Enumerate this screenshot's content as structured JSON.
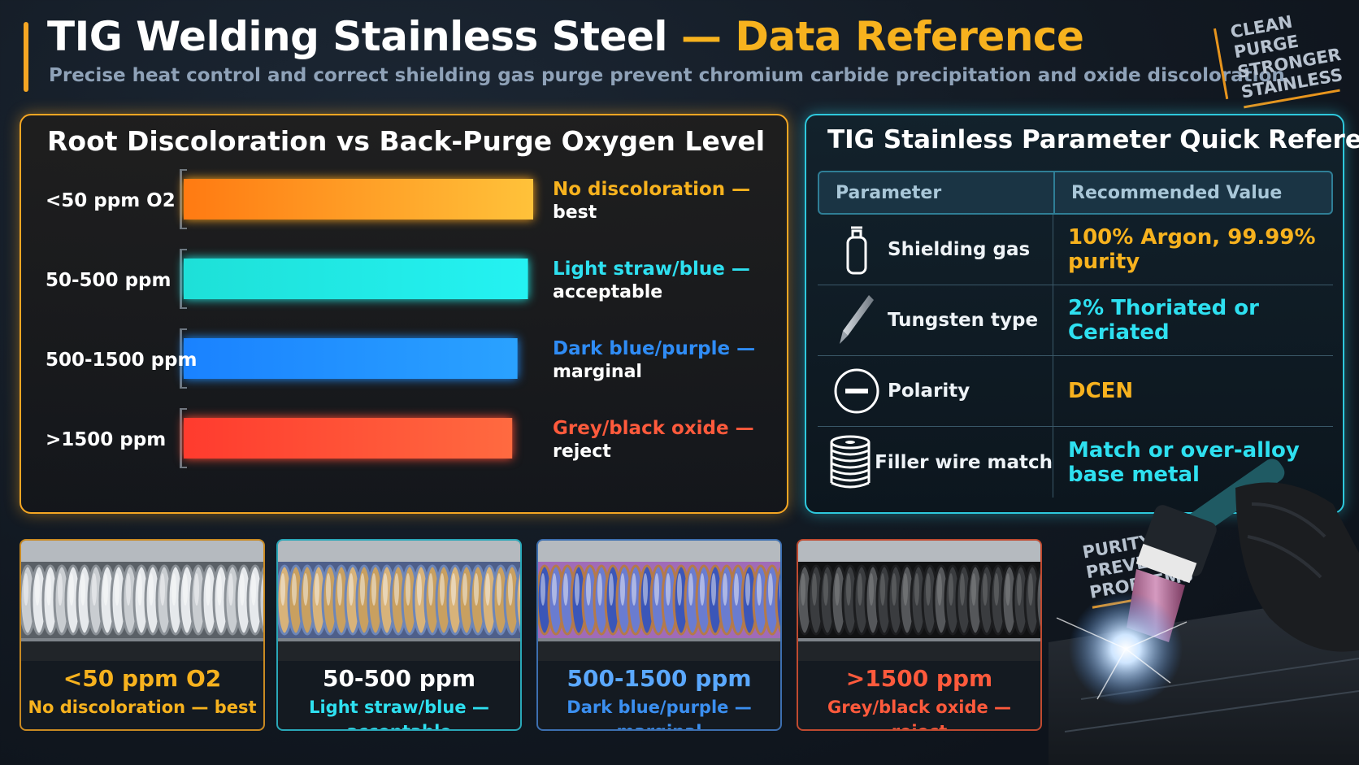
{
  "header": {
    "title_main": "TIG Welding Stainless Steel",
    "title_accent": "— Data Reference",
    "subtitle": "Precise heat control and correct shielding gas purge prevent chromium carbide precipitation and oxide discoloration",
    "tag": "CLEAN\nPURGE\nSTRONGER\nSTAINLESS"
  },
  "colors": {
    "accent": "#f5a623",
    "cyan": "#2ee0f0",
    "blue": "#2f8cf5",
    "red": "#ff5a3c"
  },
  "chart_data": {
    "type": "bar",
    "orientation": "horizontal",
    "title": "Root Discoloration vs Back-Purge Oxygen Level",
    "categories": [
      "<50 ppm O2",
      "50-500 ppm",
      "500-1500 ppm",
      ">1500 ppm"
    ],
    "values": [
      100,
      98.5,
      95.5,
      94
    ],
    "colors": [
      "#f8a21c",
      "#1fe6e2",
      "#1f8fff",
      "#ff4b32"
    ],
    "annotations": [
      {
        "lead": "No discoloration —",
        "rest": "best",
        "color": "#f7b21e"
      },
      {
        "lead": "Light straw/blue —",
        "rest": "acceptable",
        "color": "#2ee0f0"
      },
      {
        "lead": "Dark blue/purple —",
        "rest": "marginal",
        "color": "#2f8cf5"
      },
      {
        "lead": "Grey/black oxide —",
        "rest": "reject",
        "color": "#ff5a3c"
      }
    ],
    "xlim": [
      0,
      100
    ],
    "grid": false,
    "legend": "none"
  },
  "table": {
    "title": "TIG Stainless Parameter Quick Reference",
    "headers": [
      "Parameter",
      "Recommended Value"
    ],
    "rows": [
      {
        "icon": "gas-cylinder-icon",
        "param": "Shielding gas",
        "value": "100% Argon, 99.99% purity",
        "color": "#f7b21e"
      },
      {
        "icon": "tungsten-electrode-icon",
        "param": "Tungsten type",
        "value": "2% Thoriated or Ceriated",
        "color": "#2ee0f0"
      },
      {
        "icon": "negative-polarity-icon",
        "param": "Polarity",
        "value": "DCEN",
        "color": "#f7b21e"
      },
      {
        "icon": "filler-wire-spool-icon",
        "param": "Filler wire match",
        "value": "Match or over-alloy base metal",
        "color": "#2ee0f0"
      }
    ]
  },
  "samples": [
    {
      "ppm": "<50 ppm O2",
      "desc": "No discoloration — best",
      "ppm_color": "#f7b21e",
      "desc_color": "#f7b21e",
      "border": "#c98a22",
      "tint": "clean"
    },
    {
      "ppm": "50-500 ppm",
      "desc": "Light straw/blue — acceptable",
      "ppm_color": "#ffffff",
      "desc_color": "#2ee0f0",
      "border": "#2aa7b8",
      "tint": "straw"
    },
    {
      "ppm": "500-1500 ppm",
      "desc": "Dark blue/purple — marginal",
      "ppm_color": "#5aa8ff",
      "desc_color": "#3b8ff0",
      "border": "#3d6fb0",
      "tint": "blue"
    },
    {
      "ppm": ">1500 ppm",
      "desc": "Grey/black oxide — reject",
      "ppm_color": "#ff5a3c",
      "desc_color": "#ff5a3c",
      "border": "#c04a30",
      "tint": "black"
    }
  ],
  "footer_tag": "PURITY\nPREVENTS\nPROBLEMS"
}
